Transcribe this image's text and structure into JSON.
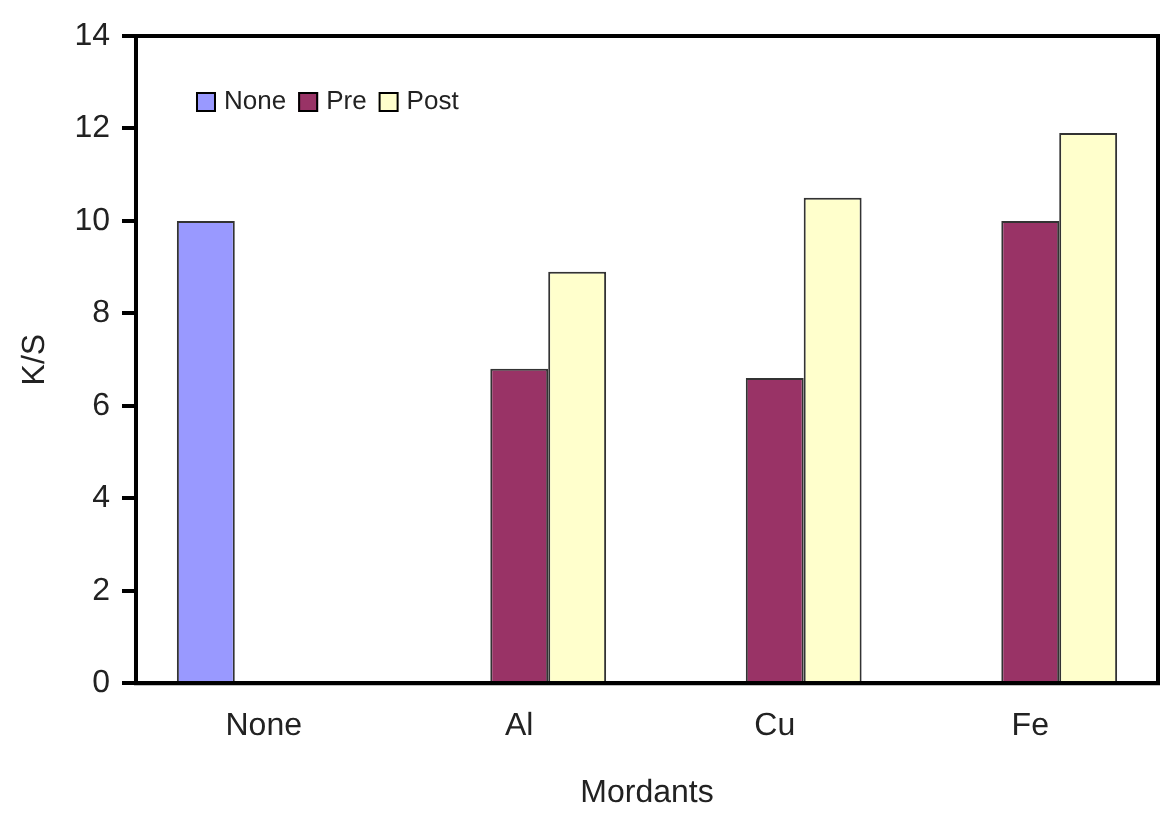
{
  "chart_data": {
    "type": "bar",
    "xlabel": "Mordants",
    "ylabel": "K/S",
    "categories": [
      "None",
      "Al",
      "Cu",
      "Fe"
    ],
    "series": [
      {
        "name": "None",
        "color": "#9999ff",
        "values": [
          10.0,
          null,
          null,
          null
        ]
      },
      {
        "name": "Pre",
        "color": "#993366",
        "values": [
          null,
          6.8,
          6.6,
          10.0
        ]
      },
      {
        "name": "Post",
        "color": "#ffffcc",
        "values": [
          null,
          8.9,
          10.5,
          11.9
        ]
      }
    ],
    "ylim": [
      0,
      14
    ],
    "yticks": [
      0,
      2,
      4,
      6,
      8,
      10,
      12,
      14
    ],
    "grid": false,
    "legend": "top left"
  }
}
